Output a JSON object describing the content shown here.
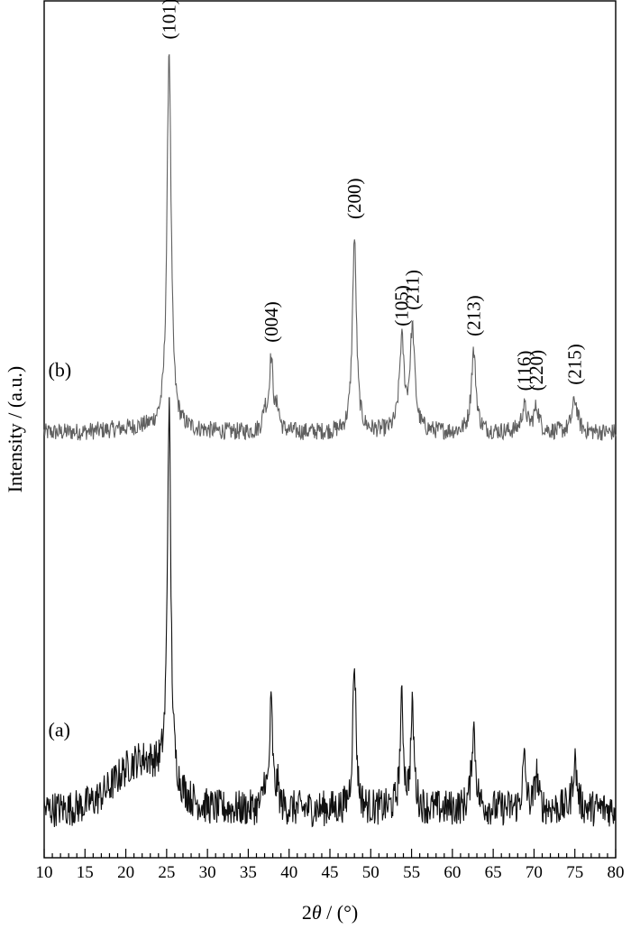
{
  "chart_data": {
    "type": "line",
    "xlabel_pre": "2",
    "xlabel_theta": "θ",
    "xlabel_post": " / (°)",
    "ylabel": "Intensity / (a.u.)",
    "xlim": [
      10,
      80
    ],
    "xticks": [
      10,
      15,
      20,
      25,
      30,
      35,
      40,
      45,
      50,
      55,
      60,
      65,
      70,
      75,
      80
    ],
    "grid": false,
    "series": [
      {
        "name": "(b)",
        "color": "#606060",
        "baseline": 0.92,
        "noise": 0.22,
        "hump": [
          23,
          6,
          0.12
        ],
        "peaks": [
          [
            25.3,
            0.3,
            9.4
          ],
          [
            37.0,
            0.25,
            0.5
          ],
          [
            37.8,
            0.3,
            1.8
          ],
          [
            38.6,
            0.25,
            0.5
          ],
          [
            48.0,
            0.3,
            4.8
          ],
          [
            53.8,
            0.35,
            2.2
          ],
          [
            55.1,
            0.35,
            2.5
          ],
          [
            62.6,
            0.35,
            2.0
          ],
          [
            68.8,
            0.4,
            0.6
          ],
          [
            70.3,
            0.4,
            0.6
          ],
          [
            75.0,
            0.4,
            0.8
          ]
        ],
        "labels": [
          {
            "text": "(101)",
            "x": 25.3,
            "y": 10.65
          },
          {
            "text": "(004)",
            "x": 37.8,
            "y": 3.15
          },
          {
            "text": "(200)",
            "x": 48.0,
            "y": 6.2
          },
          {
            "text": "(105)",
            "x": 53.8,
            "y": 3.55
          },
          {
            "text": "(211)",
            "x": 55.1,
            "y": 3.95
          },
          {
            "text": "(213)",
            "x": 62.6,
            "y": 3.3
          },
          {
            "text": "(116)",
            "x": 68.8,
            "y": 1.95
          },
          {
            "text": "(220)",
            "x": 70.3,
            "y": 1.95
          },
          {
            "text": "(215)",
            "x": 75.0,
            "y": 2.1
          }
        ],
        "label": {
          "text": "(b)",
          "x": 10.5,
          "y": 2.3
        }
      },
      {
        "name": "(a)",
        "color": "#101010",
        "baseline": -8.4,
        "noise": 0.45,
        "hump": [
          22,
          4.5,
          1.2
        ],
        "peaks": [
          [
            25.3,
            0.25,
            9.3
          ],
          [
            37.0,
            0.2,
            0.6
          ],
          [
            37.8,
            0.22,
            2.6
          ],
          [
            38.6,
            0.2,
            0.5
          ],
          [
            48.0,
            0.25,
            3.6
          ],
          [
            53.8,
            0.25,
            2.6
          ],
          [
            55.1,
            0.25,
            2.4
          ],
          [
            62.6,
            0.3,
            2.0
          ],
          [
            68.8,
            0.25,
            1.2
          ],
          [
            70.3,
            0.25,
            0.9
          ],
          [
            75.0,
            0.3,
            1.2
          ]
        ],
        "labels": [],
        "label": {
          "text": "(a)",
          "x": 10.5,
          "y": -6.6
        }
      }
    ],
    "ylim": [
      -9.6,
      11.6
    ]
  }
}
